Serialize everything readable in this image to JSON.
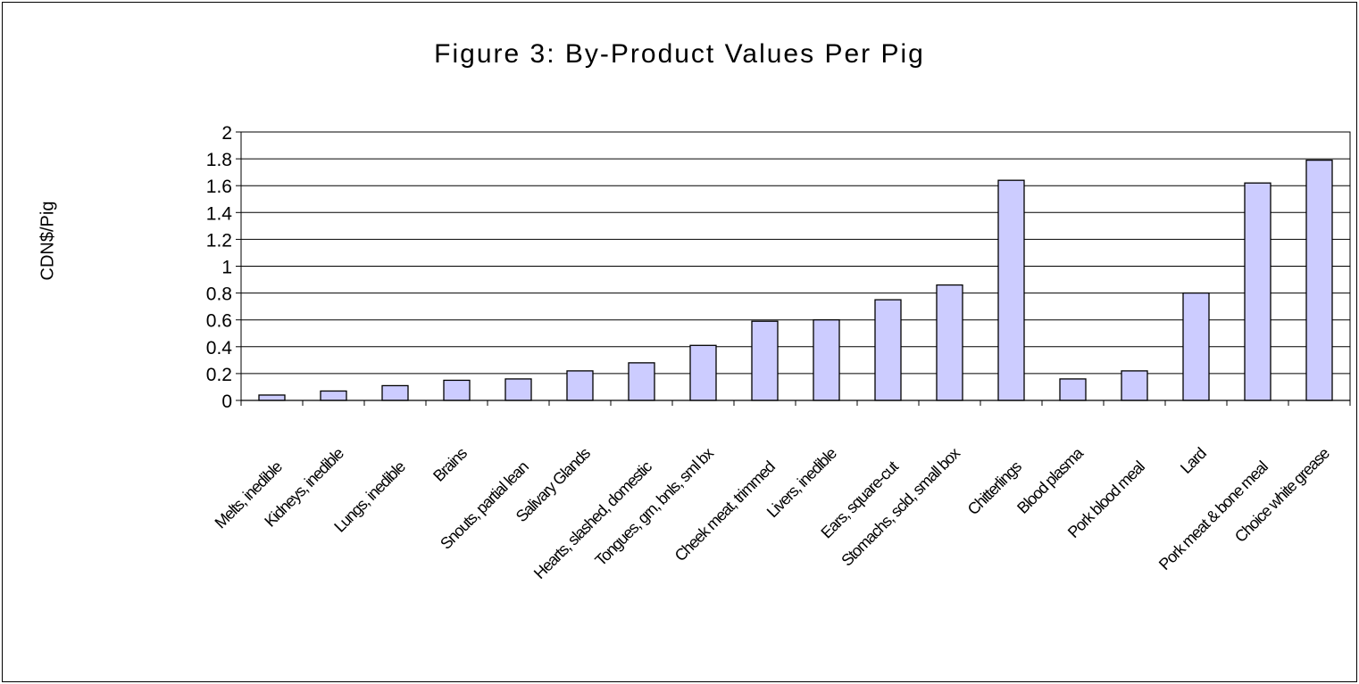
{
  "chart_data": {
    "type": "bar",
    "title": "Figure 3: By-Product Values Per Pig",
    "xlabel": "",
    "ylabel": "CDN$/Pig",
    "ylim": [
      0,
      2
    ],
    "yticks": [
      "0",
      "0.2",
      "0.4",
      "0.6",
      "0.8",
      "1",
      "1.2",
      "1.4",
      "1.6",
      "1.8",
      "2"
    ],
    "grid": true,
    "legend": "none",
    "bar_color": "#ccccff",
    "categories": [
      "Melts, inedible",
      "Kidneys, inedible",
      "Lungs, inedible",
      "Brains",
      "Snouts, partial lean",
      "Salivary Glands",
      "Hearts, slashed, domestic",
      "Tongues, grn, bnls, sml bx",
      "Cheek meat, trimmed",
      "Livers, inedible",
      "Ears, square-cut",
      "Stomachs, scld, small box",
      "Chitterlings",
      "Blood plasma",
      "Pork blood meal",
      "Lard",
      "Pork meat & bone meal",
      "Choice white grease"
    ],
    "values": [
      0.04,
      0.07,
      0.11,
      0.15,
      0.16,
      0.22,
      0.28,
      0.41,
      0.59,
      0.6,
      0.75,
      0.86,
      1.64,
      0.16,
      0.22,
      0.8,
      1.62,
      1.79
    ]
  }
}
